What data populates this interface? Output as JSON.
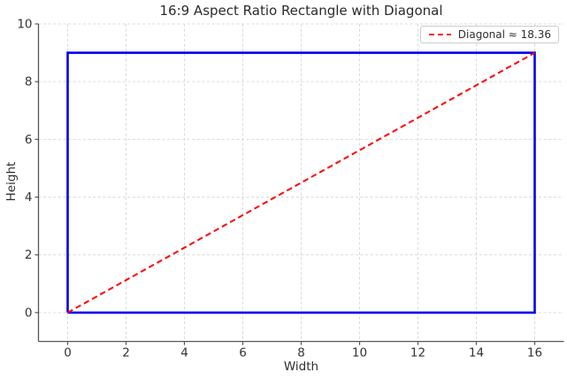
{
  "colors": {
    "background": "#ffffff",
    "grid": "#d9d9d9",
    "spine": "#555555",
    "tick_text": "#333333",
    "title_text": "#2b2b2b",
    "rectangle_blue": "#0000ee",
    "diagonal_red": "#ff0000",
    "legend_border": "#cccccc"
  },
  "chart_data": {
    "type": "line",
    "title": "16:9 Aspect Ratio Rectangle with Diagonal",
    "xlabel": "Width",
    "ylabel": "Height",
    "xlim": [
      -1,
      17
    ],
    "ylim": [
      -1,
      10
    ],
    "xticks": [
      0,
      2,
      4,
      6,
      8,
      10,
      12,
      14,
      16
    ],
    "yticks": [
      0,
      2,
      4,
      6,
      8,
      10
    ],
    "grid": true,
    "grid_linestyle": "dashed",
    "legend_position": "upper right",
    "series": [
      {
        "name": "rectangle",
        "color": "#0000ee",
        "linestyle": "solid",
        "linewidth": 2.6,
        "points": [
          [
            0,
            0
          ],
          [
            16,
            0
          ],
          [
            16,
            9
          ],
          [
            0,
            9
          ],
          [
            0,
            0
          ]
        ]
      },
      {
        "name": "diagonal",
        "color": "#ff0000",
        "linestyle": "dashed",
        "linewidth": 2,
        "points": [
          [
            0,
            0
          ],
          [
            16,
            9
          ]
        ]
      }
    ],
    "legend": {
      "entries": [
        {
          "label": "Diagonal ≈ 18.36",
          "color": "#ff0000",
          "linestyle": "dashed"
        }
      ]
    },
    "rectangle": {
      "width": 16,
      "height": 9,
      "aspect_ratio": "16:9",
      "diagonal_length": 18.36
    }
  }
}
